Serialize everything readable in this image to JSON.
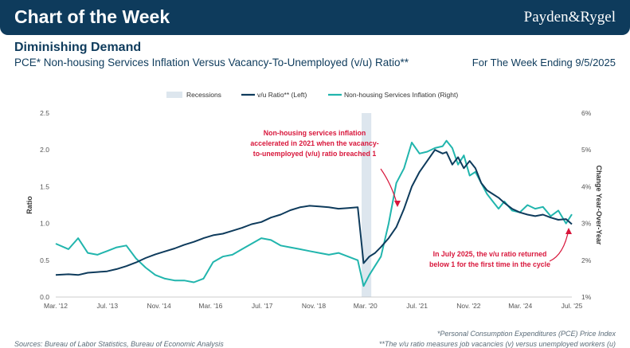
{
  "header": {
    "banner_title": "Chart of the Week",
    "brand": "Payden&Rygel"
  },
  "title": "Diminishing Demand",
  "subtitle": "PCE* Non-housing Services Inflation Versus Vacancy-To-Unemployed (v/u) Ratio**",
  "week_ending": "For The Week Ending 9/5/2025",
  "footer": {
    "sources": "Sources: Bureau of Labor Statistics, Bureau of Economic Analysis",
    "note1": "*Personal Consumption Expenditures (PCE) Price Index",
    "note2": "**The v/u ratio measures job vacancies (v) versus unemployed workers (u)"
  },
  "colors": {
    "vu": "#0e3b5c",
    "inflation": "#21b5ad",
    "recession": "#dde6ee",
    "annotation": "#d8163b"
  },
  "chart_data": {
    "type": "line",
    "x_tick_labels": [
      "Mar. '12",
      "Jul. '13",
      "Nov. '14",
      "Mar. '16",
      "Jul. '17",
      "Nov. '18",
      "Mar. '20",
      "Jul. '21",
      "Nov. '22",
      "Mar. '24",
      "Jul. '25"
    ],
    "ylabel_left": "Ratio",
    "ylabel_right": "Change Year-Over-Year",
    "ylim_left": [
      0,
      2.5
    ],
    "yticks_left": [
      "0.0",
      "0.5",
      "1.0",
      "1.5",
      "2.0",
      "2.5"
    ],
    "ylim_right": [
      1,
      6
    ],
    "yticks_right": [
      "1%",
      "2%",
      "3%",
      "4%",
      "5%",
      "6%"
    ],
    "legend": [
      "Recessions",
      "v/u Ratio** (Left)",
      "Non-housing Services Inflation (Right)"
    ],
    "legend_position": "top-center",
    "recession": {
      "start": 2020.1,
      "end": 2020.35
    },
    "series": [
      {
        "name": "v/u Ratio** (Left)",
        "axis": "left",
        "x": [
          2012.17,
          2012.5,
          2012.75,
          2013.0,
          2013.25,
          2013.5,
          2013.75,
          2014.0,
          2014.25,
          2014.5,
          2014.75,
          2015.0,
          2015.25,
          2015.5,
          2015.75,
          2016.0,
          2016.25,
          2016.5,
          2016.75,
          2017.0,
          2017.25,
          2017.5,
          2017.75,
          2018.0,
          2018.25,
          2018.5,
          2018.75,
          2019.0,
          2019.25,
          2019.5,
          2019.75,
          2020.0,
          2020.15,
          2020.3,
          2020.45,
          2020.6,
          2020.8,
          2021.0,
          2021.2,
          2021.4,
          2021.6,
          2021.8,
          2022.0,
          2022.2,
          2022.3,
          2022.45,
          2022.6,
          2022.75,
          2022.9,
          2023.05,
          2023.2,
          2023.35,
          2023.5,
          2023.65,
          2023.8,
          2024.0,
          2024.2,
          2024.4,
          2024.6,
          2024.8,
          2025.0,
          2025.2,
          2025.4,
          2025.55
        ],
        "values": [
          0.3,
          0.31,
          0.3,
          0.33,
          0.34,
          0.35,
          0.38,
          0.42,
          0.47,
          0.53,
          0.58,
          0.62,
          0.66,
          0.71,
          0.75,
          0.8,
          0.84,
          0.86,
          0.9,
          0.94,
          0.99,
          1.02,
          1.08,
          1.12,
          1.18,
          1.22,
          1.24,
          1.23,
          1.22,
          1.2,
          1.21,
          1.22,
          0.46,
          0.55,
          0.6,
          0.68,
          0.8,
          0.95,
          1.2,
          1.5,
          1.7,
          1.85,
          2.0,
          1.95,
          1.97,
          1.8,
          1.9,
          1.75,
          1.85,
          1.75,
          1.55,
          1.45,
          1.4,
          1.35,
          1.28,
          1.2,
          1.15,
          1.12,
          1.1,
          1.12,
          1.08,
          1.05,
          1.06,
          0.99
        ]
      },
      {
        "name": "Non-housing Services Inflation (Right)",
        "axis": "right",
        "x": [
          2012.17,
          2012.5,
          2012.75,
          2013.0,
          2013.25,
          2013.5,
          2013.75,
          2014.0,
          2014.25,
          2014.5,
          2014.75,
          2015.0,
          2015.25,
          2015.5,
          2015.75,
          2016.0,
          2016.25,
          2016.5,
          2016.75,
          2017.0,
          2017.25,
          2017.5,
          2017.75,
          2018.0,
          2018.25,
          2018.5,
          2018.75,
          2019.0,
          2019.25,
          2019.5,
          2019.75,
          2020.0,
          2020.15,
          2020.3,
          2020.45,
          2020.6,
          2020.8,
          2021.0,
          2021.2,
          2021.4,
          2021.6,
          2021.8,
          2022.0,
          2022.2,
          2022.3,
          2022.45,
          2022.6,
          2022.75,
          2022.9,
          2023.05,
          2023.2,
          2023.35,
          2023.5,
          2023.65,
          2023.8,
          2024.0,
          2024.2,
          2024.4,
          2024.6,
          2024.8,
          2025.0,
          2025.2,
          2025.4,
          2025.55
        ],
        "values": [
          2.45,
          2.3,
          2.6,
          2.2,
          2.15,
          2.25,
          2.35,
          2.4,
          2.05,
          1.8,
          1.6,
          1.5,
          1.45,
          1.45,
          1.4,
          1.5,
          1.95,
          2.1,
          2.15,
          2.3,
          2.45,
          2.6,
          2.55,
          2.4,
          2.35,
          2.3,
          2.25,
          2.2,
          2.15,
          2.2,
          2.1,
          2.0,
          1.3,
          1.6,
          1.85,
          2.1,
          3.0,
          4.1,
          4.5,
          5.2,
          4.9,
          4.95,
          5.05,
          5.1,
          5.25,
          5.05,
          4.6,
          4.85,
          4.3,
          4.4,
          4.1,
          3.8,
          3.6,
          3.4,
          3.6,
          3.35,
          3.3,
          3.5,
          3.4,
          3.45,
          3.2,
          3.35,
          3.0,
          3.25
        ]
      }
    ],
    "annotations": [
      {
        "lines": [
          "Non-housing services inflation",
          "accelerated in 2021 when the vacancy-",
          "to-unemployed (v/u) ratio breached 1"
        ]
      },
      {
        "lines": [
          "In July 2025, the v/u ratio returned",
          "below 1 for the first time in the cycle"
        ]
      }
    ]
  }
}
